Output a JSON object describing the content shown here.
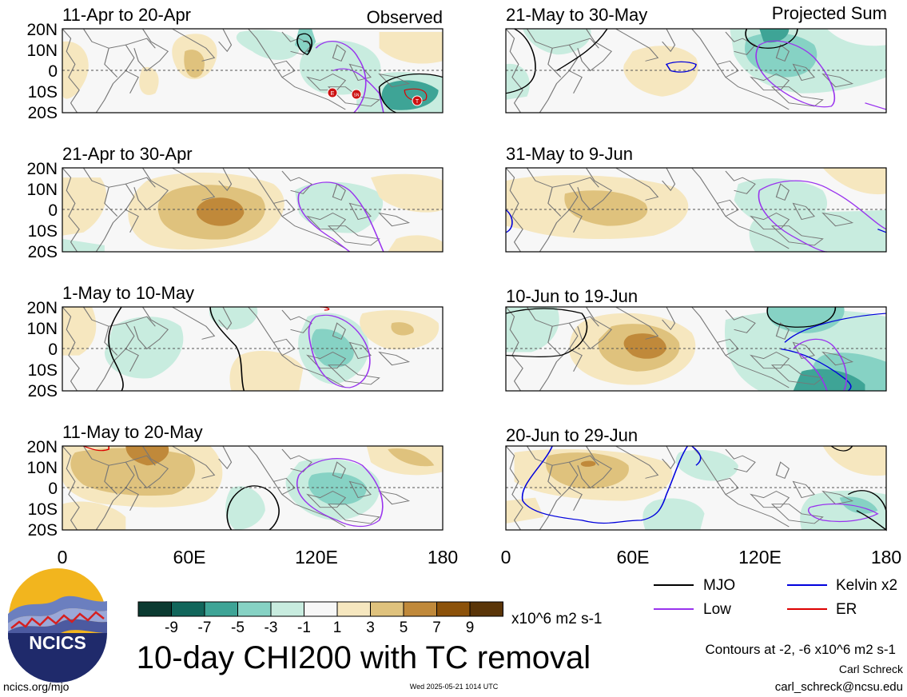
{
  "panels": [
    {
      "id": "p1",
      "title": "11-Apr to 20-Apr",
      "label": "Observed"
    },
    {
      "id": "p2",
      "title": "21-Apr to 30-Apr",
      "label": ""
    },
    {
      "id": "p3",
      "title": "1-May to 10-May",
      "label": ""
    },
    {
      "id": "p4",
      "title": "11-May to 20-May",
      "label": ""
    },
    {
      "id": "p5",
      "title": "21-May to 30-May",
      "label": "Projected Sum"
    },
    {
      "id": "p6",
      "title": "31-May to 9-Jun",
      "label": ""
    },
    {
      "id": "p7",
      "title": "10-Jun to 19-Jun",
      "label": ""
    },
    {
      "id": "p8",
      "title": "20-Jun to 29-Jun",
      "label": ""
    }
  ],
  "lat_ticks": [
    "20N",
    "10N",
    "0",
    "10S",
    "20S"
  ],
  "lon_ticks": [
    "0",
    "60E",
    "120E",
    "180"
  ],
  "tc_markers": [
    "E",
    "SN",
    "T"
  ],
  "colorbar": {
    "colors": [
      "#0b3a31",
      "#11665b",
      "#3ea496",
      "#86d2c4",
      "#c8ecdf",
      "#f7f7f7",
      "#f6e7bf",
      "#dfc27d",
      "#c0893a",
      "#8c520a",
      "#5a3508"
    ],
    "labels": [
      "-9",
      "-7",
      "-5",
      "-3",
      "-1",
      "1",
      "3",
      "5",
      "7",
      "9"
    ],
    "units": "x10^6 m2 s-1"
  },
  "legend": [
    {
      "name": "MJO",
      "color": "#000000"
    },
    {
      "name": "Kelvin x2",
      "color": "#0000dd"
    },
    {
      "name": "Low",
      "color": "#9933ee"
    },
    {
      "name": "ER",
      "color": "#dd0000"
    }
  ],
  "logo": {
    "text": "NCICS"
  },
  "title": "10-day CHI200 with TC removal",
  "contour_note": "Contours at -2, -6 x10^6 m2 s-1",
  "author": "Carl Schreck",
  "email": "carl_schreck@ncsu.edu",
  "site": "ncics.org/mjo",
  "timestamp": "Wed 2025-05-21 1014 UTC"
}
